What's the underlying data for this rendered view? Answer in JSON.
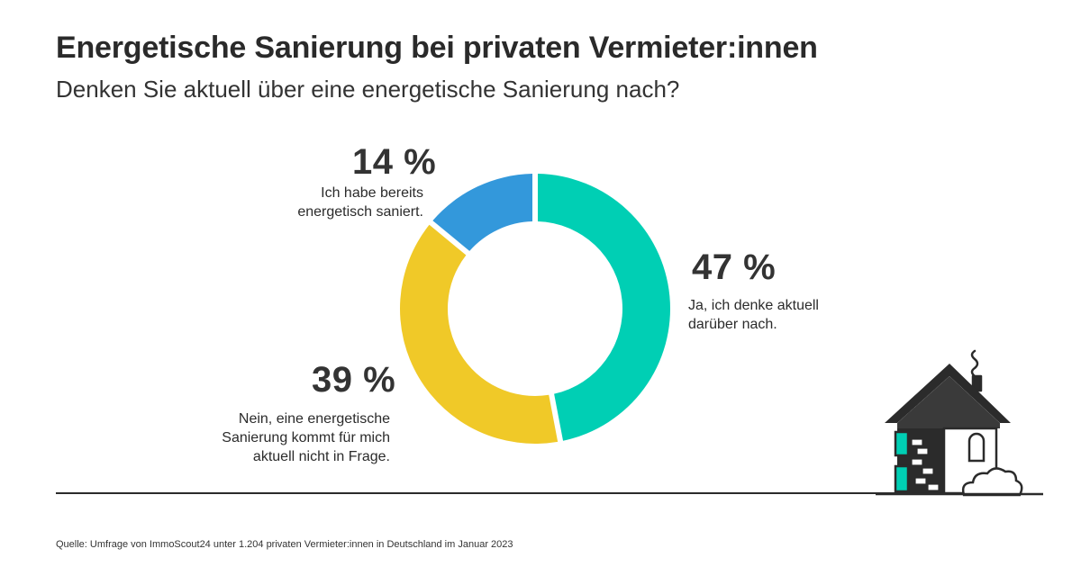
{
  "header": {
    "title": "Energetische Sanierung bei privaten Vermieter:innen",
    "subtitle": "Denken Sie aktuell über eine energetische Sanierung nach?"
  },
  "colors": {
    "ja": "#00cfb4",
    "nein": "#f0c928",
    "bereits": "#3398db",
    "text": "#2b2b2b"
  },
  "chart_data": {
    "type": "pie",
    "variant": "donut",
    "title": "Energetische Sanierung bei privaten Vermieter:innen",
    "subtitle": "Denken Sie aktuell über eine energetische Sanierung nach?",
    "slices": [
      {
        "key": "ja",
        "value": 47,
        "value_label": "47 %",
        "label_lines": [
          "Ja, ich denke aktuell",
          "darüber nach."
        ],
        "color": "#00cfb4"
      },
      {
        "key": "nein",
        "value": 39,
        "value_label": "39 %",
        "label_lines": [
          "Nein, eine energetische",
          "Sanierung kommt für mich",
          "aktuell nicht in Frage."
        ],
        "color": "#f0c928"
      },
      {
        "key": "bereits",
        "value": 14,
        "value_label": "14 %",
        "label_lines": [
          "Ich habe bereits",
          "energetisch saniert."
        ],
        "color": "#3398db"
      }
    ],
    "unit": "%",
    "start": "12 o'clock, clockwise",
    "legend": "none (direct labels)"
  },
  "footer": {
    "source": "Quelle: Umfrage von ImmoScout24 unter 1.204 privaten Vermieter:innen in Deutschland im Januar 2023"
  }
}
